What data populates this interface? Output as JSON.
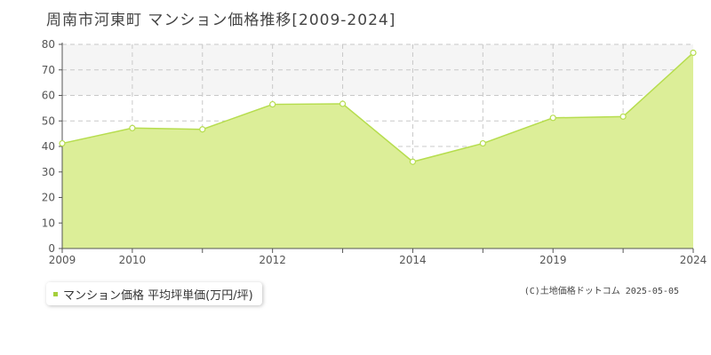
{
  "title": "周南市河東町 マンション価格推移[2009-2024]",
  "legend": {
    "label": "マンション価格 平均坪単価(万円/坪)"
  },
  "credit": "(C)土地価格ドットコム 2025-05-05",
  "colors": {
    "line": "#b6dd4e",
    "fill": "#dcee98",
    "point_fill": "#ffffff",
    "band": "#f5f5f5",
    "grid": "#c8c8c8"
  },
  "chart_data": {
    "type": "area",
    "x": [
      2009,
      2010,
      2011,
      2012,
      2013,
      2014,
      2015,
      2019,
      2020,
      2024
    ],
    "x_tick_labels": [
      "2009",
      "2010",
      "",
      "2012",
      "",
      "2014",
      "",
      "2019",
      "",
      "2024"
    ],
    "series": [
      {
        "name": "マンション価格 平均坪単価(万円/坪)",
        "values": [
          41.2,
          47.2,
          46.7,
          56.5,
          56.7,
          34.0,
          41.2,
          51.2,
          51.7,
          76.7
        ]
      }
    ],
    "y_ticks": [
      0,
      10,
      20,
      30,
      40,
      50,
      60,
      70,
      80
    ],
    "ylim": [
      0,
      80
    ],
    "grid": true,
    "legend_position": "bottom-left"
  }
}
